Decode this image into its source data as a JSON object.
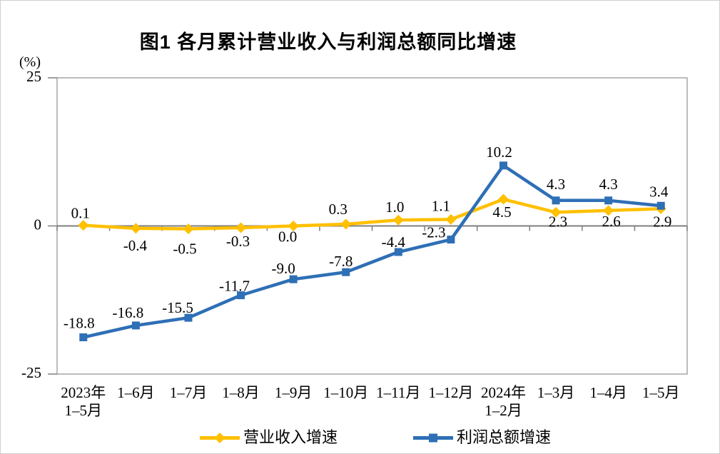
{
  "title": "图1  各月累计营业收入与利润总额同比增速",
  "unit_label": "(%)",
  "legend": [
    {
      "label": "营业收入增速",
      "color": "#FFC000",
      "marker": "diamond"
    },
    {
      "label": "利润总额增速",
      "color": "#2E6FB6",
      "marker": "square"
    }
  ],
  "chart_data": {
    "type": "line",
    "title": "图1  各月累计营业收入与利润总额同比增速",
    "ylabel": "(%)",
    "ylim": [
      -25,
      25
    ],
    "yticks": [
      25,
      0,
      -25
    ],
    "grid": false,
    "legend_position": "bottom",
    "categories": [
      "2023年\n1–5月",
      "1–6月",
      "1–7月",
      "1–8月",
      "1–9月",
      "1–10月",
      "1–11月",
      "1–12月",
      "2024年\n1–2月",
      "1–3月",
      "1–4月",
      "1–5月"
    ],
    "series": [
      {
        "name": "营业收入增速",
        "color": "#FFC000",
        "marker": "diamond",
        "values": [
          0.1,
          -0.4,
          -0.5,
          -0.3,
          0.0,
          0.3,
          1.0,
          1.1,
          4.5,
          2.3,
          2.6,
          2.9
        ],
        "label_offsets": [
          [
            -4,
            -17
          ],
          [
            -1,
            24
          ],
          [
            -5,
            28
          ],
          [
            -4,
            19
          ],
          [
            -8,
            15
          ],
          [
            -11,
            -21
          ],
          [
            -5,
            -18
          ],
          [
            -14,
            -19
          ],
          [
            -2,
            18
          ],
          [
            3,
            13
          ],
          [
            4,
            15
          ],
          [
            2,
            18
          ]
        ]
      },
      {
        "name": "利润总额增速",
        "color": "#2E6FB6",
        "marker": "square",
        "values": [
          -18.8,
          -16.8,
          -15.5,
          -11.7,
          -9.0,
          -7.8,
          -4.4,
          -2.3,
          10.2,
          4.3,
          4.3,
          3.4
        ],
        "label_offsets": [
          [
            -6,
            -20
          ],
          [
            -11,
            -18
          ],
          [
            -15,
            -14
          ],
          [
            -9,
            -13
          ],
          [
            -14,
            -15
          ],
          [
            -7,
            -15
          ],
          [
            -7,
            -14
          ],
          [
            -24,
            -10
          ],
          [
            -6,
            -19
          ],
          [
            0,
            -23
          ],
          [
            0,
            -23
          ],
          [
            -3,
            -20
          ]
        ]
      }
    ]
  }
}
